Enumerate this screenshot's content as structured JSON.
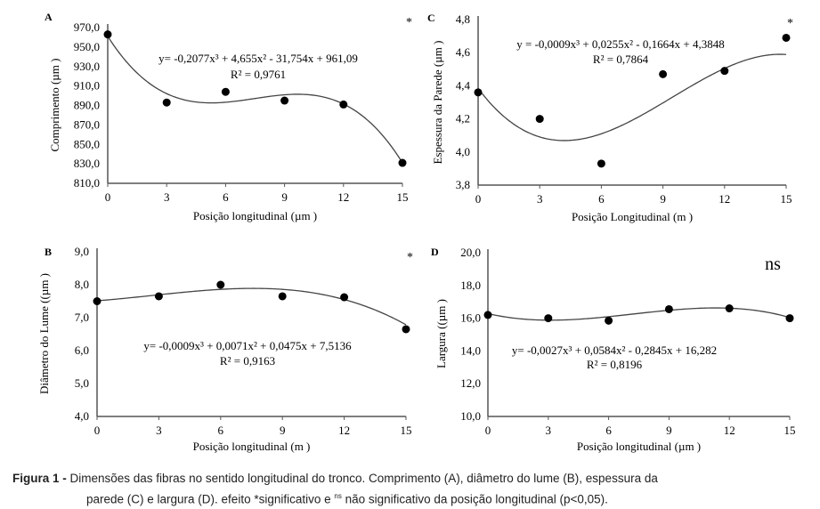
{
  "chart_data": [
    {
      "id": "A",
      "type": "scatter",
      "panel_label": "A",
      "significance": "*",
      "xlabel": "Posição longitudinal (µm )",
      "ylabel": "Comprimento (µm )",
      "x": [
        0,
        3,
        6,
        9,
        12,
        15
      ],
      "y": [
        963,
        893,
        904,
        895,
        891,
        831
      ],
      "xlim": [
        0,
        15
      ],
      "ylim": [
        810,
        970
      ],
      "xticks": [
        "0",
        "3",
        "6",
        "9",
        "12",
        "15"
      ],
      "yticks": [
        "970,0",
        "950,0",
        "930,0",
        "910,0",
        "890,0",
        "870,0",
        "850,0",
        "830,0",
        "810,0"
      ],
      "fit": {
        "type": "poly3",
        "coef": [
          -0.2077,
          4.655,
          -31.754,
          961.09
        ]
      },
      "equation": "y= -0,2077x³ + 4,655x² - 31,754x + 961,09",
      "r2": "R² = 0,9761"
    },
    {
      "id": "C",
      "type": "scatter",
      "panel_label": "C",
      "significance": "*",
      "xlabel": "Posição Longitudinal (m )",
      "ylabel": "Espessura da Parede (µm )",
      "x": [
        0,
        3,
        6,
        9,
        12,
        15
      ],
      "y": [
        4.36,
        4.2,
        3.93,
        4.47,
        4.49,
        4.69
      ],
      "xlim": [
        0,
        15
      ],
      "ylim": [
        3.8,
        4.8
      ],
      "xticks": [
        "0",
        "3",
        "6",
        "9",
        "12",
        "15"
      ],
      "yticks": [
        "4,8",
        "4,6",
        "4,4",
        "4,2",
        "4,0",
        "3,8"
      ],
      "fit": {
        "type": "poly3",
        "coef": [
          -0.0009,
          0.0255,
          -0.1664,
          4.3848
        ]
      },
      "equation": "y = -0,0009x³ + 0,0255x² - 0,1664x + 4,3848",
      "r2": "R² = 0,7864"
    },
    {
      "id": "B",
      "type": "scatter",
      "panel_label": "B",
      "significance": "*",
      "xlabel": "Posição longitudinal (m )",
      "ylabel": "Diâmetro do Lume ((µm )",
      "x": [
        0,
        3,
        6,
        9,
        12,
        15
      ],
      "y": [
        7.5,
        7.65,
        8.0,
        7.65,
        7.62,
        6.65
      ],
      "xlim": [
        0,
        15
      ],
      "ylim": [
        4.0,
        9.0
      ],
      "xticks": [
        "0",
        "3",
        "6",
        "9",
        "12",
        "15"
      ],
      "yticks": [
        "9,0",
        "8,0",
        "7,0",
        "6,0",
        "5,0",
        "4,0"
      ],
      "fit": {
        "type": "poly3",
        "coef": [
          -0.0009,
          0.0071,
          0.0475,
          7.5136
        ]
      },
      "equation": "y= -0,0009x³ + 0,0071x² + 0,0475x + 7,5136",
      "r2": "R² = 0,9163"
    },
    {
      "id": "D",
      "type": "scatter",
      "panel_label": "D",
      "significance": "ns",
      "xlabel": "Posição longitudinal (µm )",
      "ylabel": "Largura ((µm )",
      "x": [
        0,
        3,
        6,
        9,
        12,
        15
      ],
      "y": [
        16.2,
        16.0,
        15.85,
        16.55,
        16.6,
        16.0
      ],
      "xlim": [
        0,
        15
      ],
      "ylim": [
        10.0,
        20.0
      ],
      "xticks": [
        "0",
        "3",
        "6",
        "9",
        "12",
        "15"
      ],
      "yticks": [
        "20,0",
        "18,0",
        "16,0",
        "14,0",
        "12,0",
        "10,0"
      ],
      "fit": {
        "type": "poly3",
        "coef": [
          -0.0027,
          0.0584,
          -0.2845,
          16.282
        ]
      },
      "equation": "y= -0,0027x³ + 0,0584x² - 0,2845x + 16,282",
      "r2": "R² = 0,8196"
    }
  ],
  "caption": {
    "label": "Figura 1 -",
    "line1": " Dimensões das fibras no sentido longitudinal do tronco. Comprimento (A), diâmetro do lume (B), espessura da",
    "line2a": "parede (C) e largura (D). efeito *significativo e ",
    "ns_sup": "ns",
    "line2b": " não significativo da posição longitudinal (p<0,05)."
  }
}
